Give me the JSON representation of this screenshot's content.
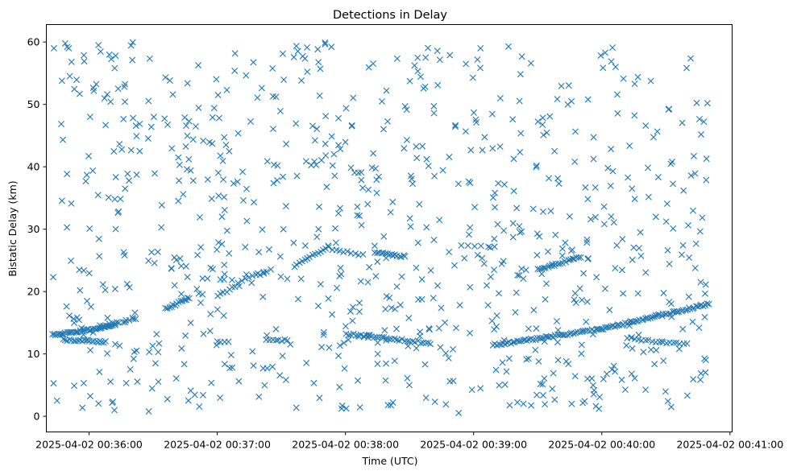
{
  "chart_data": {
    "type": "scatter",
    "title": "Detections in Delay",
    "xlabel": "Time (UTC)",
    "ylabel": "Bistatic Delay (km)",
    "marker": "x",
    "color": "#1f77b4",
    "grid": false,
    "legend": "none",
    "x_axis": {
      "kind": "time",
      "range": [
        "2025-04-02 00:35:40",
        "2025-04-02 00:41:01"
      ],
      "ticks": [
        {
          "value": "2025-04-02 00:36:00",
          "label": "2025-04-02 00:36:00"
        },
        {
          "value": "2025-04-02 00:37:00",
          "label": "2025-04-02 00:37:00"
        },
        {
          "value": "2025-04-02 00:38:00",
          "label": "2025-04-02 00:38:00"
        },
        {
          "value": "2025-04-02 00:39:00",
          "label": "2025-04-02 00:39:00"
        },
        {
          "value": "2025-04-02 00:40:00",
          "label": "2025-04-02 00:40:00"
        },
        {
          "value": "2025-04-02 00:41:00",
          "label": "2025-04-02 00:41:00"
        }
      ]
    },
    "y_axis": {
      "range": [
        -2.5,
        62.8
      ],
      "ticks": [
        0,
        10,
        20,
        30,
        40,
        50,
        60
      ]
    },
    "tracks": [
      {
        "x_start": "2025-04-02 00:35:43",
        "x_end": "2025-04-02 00:36:12",
        "y_start": 13.0,
        "y_end": 14.5,
        "count": 40
      },
      {
        "x_start": "2025-04-02 00:35:48",
        "x_end": "2025-04-02 00:36:08",
        "y_start": 12.3,
        "y_end": 11.9,
        "count": 22
      },
      {
        "x_start": "2025-04-02 00:36:05",
        "x_end": "2025-04-02 00:36:22",
        "y_start": 14.5,
        "y_end": 15.6,
        "count": 12
      },
      {
        "x_start": "2025-04-02 00:36:36",
        "x_end": "2025-04-02 00:36:47",
        "y_start": 17.2,
        "y_end": 19.0,
        "count": 14
      },
      {
        "x_start": "2025-04-02 00:37:00",
        "x_end": "2025-04-02 00:37:10",
        "y_start": 19.4,
        "y_end": 21.0,
        "count": 8
      },
      {
        "x_start": "2025-04-02 00:37:10",
        "x_end": "2025-04-02 00:37:25",
        "y_start": 21.5,
        "y_end": 23.5,
        "count": 10
      },
      {
        "x_start": "2025-04-02 00:37:36",
        "x_end": "2025-04-02 00:37:52",
        "y_start": 24.0,
        "y_end": 27.2,
        "count": 14
      },
      {
        "x_start": "2025-04-02 00:37:52",
        "x_end": "2025-04-02 00:38:08",
        "y_start": 27.0,
        "y_end": 25.8,
        "count": 10
      },
      {
        "x_start": "2025-04-02 00:38:14",
        "x_end": "2025-04-02 00:38:28",
        "y_start": 26.3,
        "y_end": 25.6,
        "count": 16
      },
      {
        "x_start": "2025-04-02 00:38:00",
        "x_end": "2025-04-02 00:38:40",
        "y_start": 13.2,
        "y_end": 11.7,
        "count": 34
      },
      {
        "x_start": "2025-04-02 00:37:23",
        "x_end": "2025-04-02 00:37:33",
        "y_start": 12.2,
        "y_end": 12.2,
        "count": 8
      },
      {
        "x_start": "2025-04-02 00:37:00",
        "x_end": "2025-04-02 00:37:05",
        "y_start": 12.0,
        "y_end": 12.0,
        "count": 4
      },
      {
        "x_start": "2025-04-02 00:38:54",
        "x_end": "2025-04-02 00:39:10",
        "y_start": 27.3,
        "y_end": 27.3,
        "count": 6
      },
      {
        "x_start": "2025-04-02 00:39:09",
        "x_end": "2025-04-02 00:40:00",
        "y_start": 11.4,
        "y_end": 14.0,
        "count": 55
      },
      {
        "x_start": "2025-04-02 00:40:00",
        "x_end": "2025-04-02 00:40:50",
        "y_start": 14.0,
        "y_end": 18.0,
        "count": 60
      },
      {
        "x_start": "2025-04-02 00:39:30",
        "x_end": "2025-04-02 00:39:50",
        "y_start": 23.5,
        "y_end": 25.5,
        "count": 22
      },
      {
        "x_start": "2025-04-02 00:40:12",
        "x_end": "2025-04-02 00:40:40",
        "y_start": 12.5,
        "y_end": 11.5,
        "count": 18
      },
      {
        "x_start": "2025-04-02 00:36:55",
        "x_end": "2025-04-02 00:38:54",
        "y_start": 20.0,
        "y_end": 26.0,
        "count": 0
      }
    ],
    "scatter_seed": 20250402,
    "scatter_count": 820,
    "scatter_x_range": [
      "2025-04-02 00:35:43",
      "2025-04-02 00:40:50"
    ],
    "scatter_y_range": [
      0.5,
      60.0
    ]
  }
}
